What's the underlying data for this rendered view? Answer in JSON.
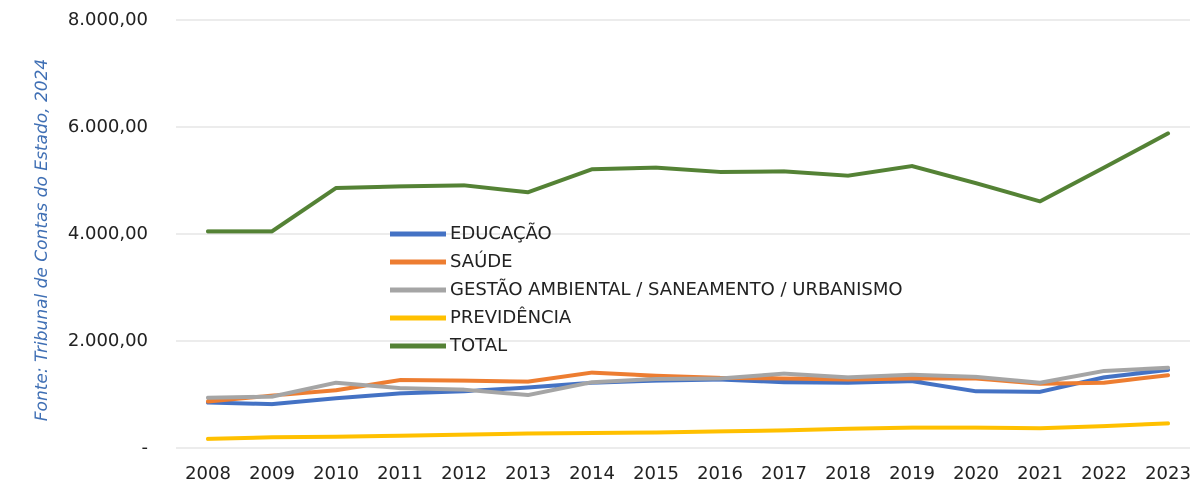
{
  "chart_data": {
    "type": "line",
    "source": "Fonte: Tribunal de Contas do Estado, 2024",
    "categories": [
      "2008",
      "2009",
      "2010",
      "2011",
      "2012",
      "2013",
      "2014",
      "2015",
      "2016",
      "2017",
      "2018",
      "2019",
      "2020",
      "2021",
      "2022",
      "2023"
    ],
    "series": [
      {
        "name": "EDUCAÇÃO",
        "color": "#4472c4",
        "values": [
          850,
          820,
          930,
          1020,
          1060,
          1130,
          1220,
          1260,
          1280,
          1230,
          1220,
          1250,
          1060,
          1050,
          1320,
          1460
        ]
      },
      {
        "name": "SAÚDE",
        "color": "#ed7d31",
        "values": [
          870,
          980,
          1080,
          1270,
          1260,
          1240,
          1410,
          1350,
          1310,
          1300,
          1280,
          1300,
          1300,
          1200,
          1220,
          1360
        ]
      },
      {
        "name": "GESTÃO AMBIENTAL / SANEAMENTO / URBANISMO",
        "color": "#a5a5a5",
        "values": [
          940,
          960,
          1220,
          1120,
          1090,
          990,
          1230,
          1290,
          1300,
          1390,
          1320,
          1370,
          1330,
          1220,
          1440,
          1500
        ]
      },
      {
        "name": "PREVIDÊNCIA",
        "color": "#ffc000",
        "values": [
          170,
          200,
          210,
          230,
          250,
          270,
          280,
          290,
          310,
          330,
          360,
          380,
          380,
          370,
          410,
          460
        ]
      },
      {
        "name": "TOTAL",
        "color": "#548235",
        "values": [
          4050,
          4050,
          4860,
          4890,
          4910,
          4780,
          5210,
          5240,
          5160,
          5170,
          5090,
          5270,
          4950,
          4610,
          5240,
          5880
        ]
      }
    ],
    "ylim": [
      0,
      8000
    ],
    "yticks": [
      {
        "value": 0,
        "label": "-"
      },
      {
        "value": 2000,
        "label": "2.000,00"
      },
      {
        "value": 4000,
        "label": "4.000,00"
      },
      {
        "value": 6000,
        "label": "6.000,00"
      },
      {
        "value": 8000,
        "label": "8.000,00"
      }
    ],
    "grid": true,
    "legend": "center"
  }
}
